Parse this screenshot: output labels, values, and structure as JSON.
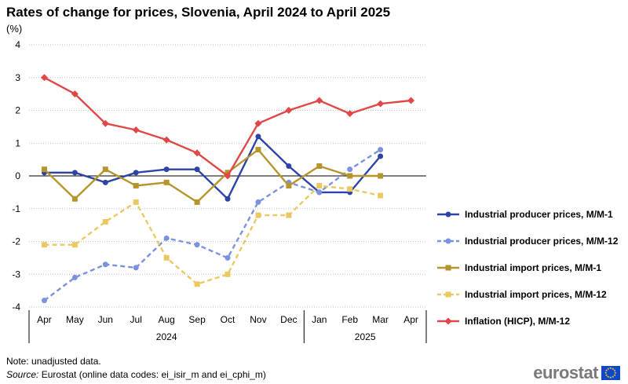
{
  "title": "Rates of change for prices, Slovenia, April 2024 to April 2025",
  "unit": "(%)",
  "chart_data": {
    "type": "line",
    "categories": [
      "Apr",
      "May",
      "Jun",
      "Jul",
      "Aug",
      "Sep",
      "Oct",
      "Nov",
      "Dec",
      "Jan",
      "Feb",
      "Mar",
      "Apr"
    ],
    "year_groups": [
      {
        "label": "2024",
        "start": 0,
        "end": 8
      },
      {
        "label": "2025",
        "start": 9,
        "end": 12
      }
    ],
    "ylim": [
      -4,
      4
    ],
    "yticks": [
      -4,
      -3,
      -2,
      -1,
      0,
      1,
      2,
      3,
      4
    ],
    "grid": true,
    "legend_position": "right",
    "series": [
      {
        "name": "Industrial producer prices, M/M-1",
        "color": "#2d44a6",
        "dash": false,
        "marker": "circle",
        "values": [
          0.1,
          0.1,
          -0.2,
          0.1,
          0.2,
          0.2,
          -0.7,
          1.2,
          0.3,
          -0.5,
          -0.5,
          0.6,
          null
        ]
      },
      {
        "name": "Industrial producer prices, M/M-12",
        "color": "#7b92dd",
        "dash": true,
        "marker": "circle",
        "values": [
          -3.8,
          -3.1,
          -2.7,
          -2.8,
          -1.9,
          -2.1,
          -2.5,
          -0.8,
          -0.2,
          -0.5,
          0.2,
          0.8,
          null
        ]
      },
      {
        "name": "Industrial import prices, M/M-1",
        "color": "#b5952c",
        "dash": false,
        "marker": "square",
        "values": [
          0.2,
          -0.7,
          0.2,
          -0.3,
          -0.2,
          -0.8,
          0.1,
          0.8,
          -0.3,
          0.3,
          0.0,
          0.0,
          null
        ]
      },
      {
        "name": "Industrial import prices, M/M-12",
        "color": "#ebc962",
        "dash": true,
        "marker": "square",
        "values": [
          -2.1,
          -2.1,
          -1.4,
          -0.8,
          -2.5,
          -3.3,
          -3.0,
          -1.2,
          -1.2,
          -0.3,
          -0.4,
          -0.6,
          null
        ]
      },
      {
        "name": "Inflation (HICP), M/M-12",
        "color": "#e04848",
        "dash": false,
        "marker": "diamond",
        "values": [
          3.0,
          2.5,
          1.6,
          1.4,
          1.1,
          0.7,
          0.0,
          1.6,
          2.0,
          2.3,
          1.9,
          2.2,
          2.3
        ]
      }
    ]
  },
  "footer": {
    "note": "Note: unadjusted data.",
    "source_label": "Source:",
    "source_text": " Eurostat (online data codes: ei_isir_m and ei_cphi_m)"
  },
  "logo": {
    "text": "eurostat",
    "flag_color": "#0e47cb",
    "star_color": "#ffdd00"
  }
}
